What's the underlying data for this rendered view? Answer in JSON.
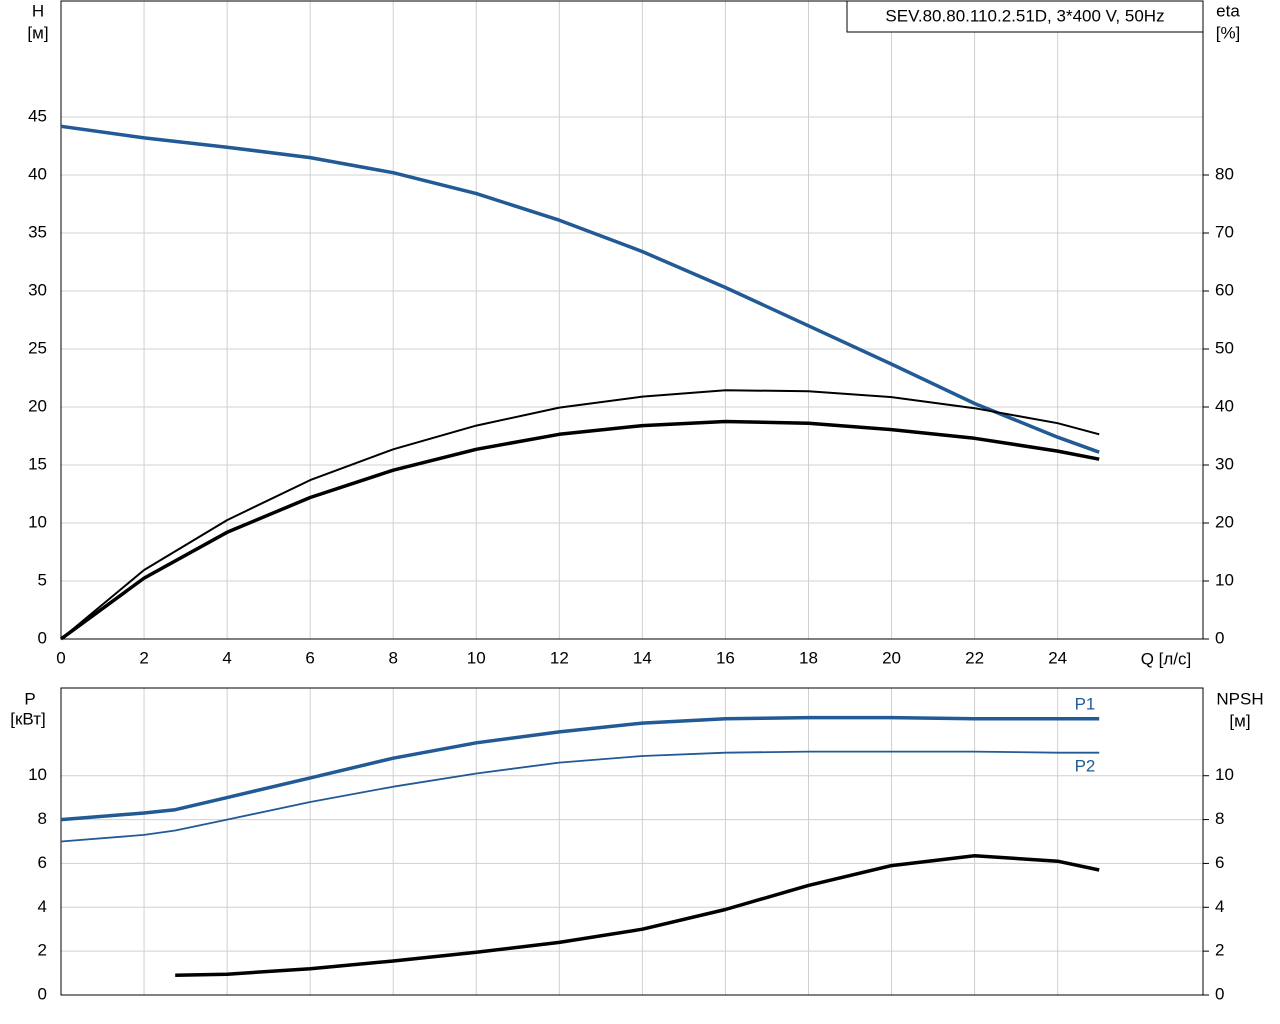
{
  "chart_data": [
    {
      "type": "line",
      "title": "SEV.80.80.110.2.51D, 3*400 V, 50Hz",
      "ylabel_lines": [
        "H",
        "[м]"
      ],
      "y2label_lines": [
        "eta",
        "[%]"
      ],
      "xlabel": "Q [л/с]",
      "x": [
        0,
        2,
        4,
        6,
        8,
        10,
        12,
        14,
        16,
        18,
        20,
        22,
        24,
        25
      ],
      "xlim": [
        0,
        27.5
      ],
      "xticks": [
        0,
        2,
        4,
        6,
        8,
        10,
        12,
        14,
        16,
        18,
        20,
        22,
        24
      ],
      "ylim": [
        0,
        55
      ],
      "yticks": [
        0,
        5,
        10,
        15,
        20,
        25,
        30,
        35,
        40,
        45
      ],
      "y2lim": [
        0,
        110
      ],
      "y2ticks": [
        0,
        10,
        20,
        30,
        40,
        50,
        60,
        70,
        80
      ],
      "grid": true,
      "series": [
        {
          "color": "#215a94",
          "values": [
            44.2,
            43.2,
            42.4,
            41.5,
            40.2,
            38.4,
            36.1,
            33.4,
            30.3,
            27.0,
            23.7,
            20.3,
            17.4,
            16.1
          ]
        },
        {
          "color": "#000000",
          "axis": "y2",
          "values": [
            0,
            11.9,
            20.5,
            27.4,
            32.7,
            36.8,
            39.9,
            41.8,
            42.9,
            42.7,
            41.7,
            39.8,
            37.2,
            35.3
          ]
        },
        {
          "color": "#000000",
          "axis": "y2",
          "values": [
            0,
            10.5,
            18.4,
            24.4,
            29.1,
            32.7,
            35.3,
            36.8,
            37.5,
            37.2,
            36.1,
            34.6,
            32.4,
            31.0
          ]
        }
      ]
    },
    {
      "type": "line",
      "ylabel_lines": [
        "P",
        "[кВт]"
      ],
      "y2label_lines": [
        "NPSH",
        "[м]"
      ],
      "x": [
        0,
        2,
        2.75,
        4,
        6,
        8,
        10,
        12,
        14,
        16,
        18,
        20,
        22,
        24,
        25
      ],
      "xlim": [
        0,
        27.5
      ],
      "ylim": [
        0,
        14
      ],
      "yticks": [
        0,
        2,
        4,
        6,
        8,
        10
      ],
      "y2lim": [
        0,
        14
      ],
      "y2ticks": [
        0,
        2,
        4,
        6,
        8,
        10
      ],
      "grid": true,
      "series": [
        {
          "name": "P1",
          "color": "#215a94",
          "values": [
            8.0,
            8.3,
            8.45,
            9.0,
            9.9,
            10.8,
            11.5,
            12.0,
            12.4,
            12.6,
            12.65,
            12.65,
            12.6,
            12.6,
            12.6
          ]
        },
        {
          "name": "P2",
          "color": "#215a94",
          "values": [
            7.0,
            7.3,
            7.5,
            8.0,
            8.8,
            9.5,
            10.1,
            10.6,
            10.9,
            11.05,
            11.1,
            11.1,
            11.1,
            11.05,
            11.05
          ]
        },
        {
          "color": "#000000",
          "axis": "y2",
          "values": [
            null,
            null,
            0.9,
            0.95,
            1.2,
            1.55,
            1.95,
            2.4,
            3.0,
            3.9,
            5.0,
            5.9,
            6.35,
            6.1,
            5.7
          ]
        }
      ]
    }
  ]
}
